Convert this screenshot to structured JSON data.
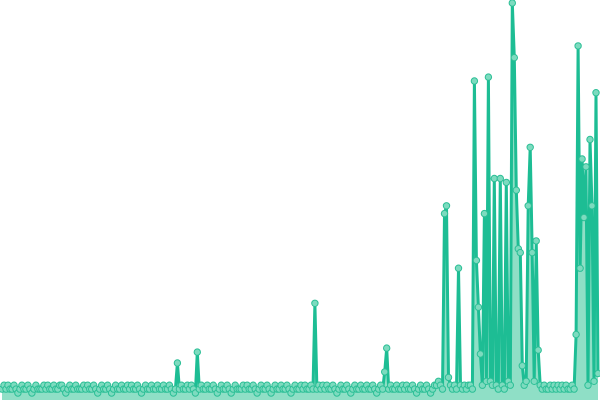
{
  "chart_data": {
    "type": "area",
    "title": "",
    "xlabel": "",
    "ylabel": "",
    "ylim": [
      0,
      100
    ],
    "grid": false,
    "axes_visible": false,
    "markers": true,
    "colors": {
      "line": "#1dbd94",
      "area": "#8fdfc6",
      "marker_fill": "#7ddbbf",
      "marker_stroke": "#2cbf96"
    },
    "series": [
      {
        "values": [
          1,
          2,
          1,
          2,
          1,
          1,
          2,
          1,
          0,
          1,
          2,
          1,
          1,
          2,
          1,
          0,
          1,
          2,
          1,
          1,
          1,
          2,
          1,
          2,
          1,
          1,
          2,
          1,
          1,
          2,
          2,
          1,
          0,
          1,
          2,
          1,
          1,
          2,
          1,
          1,
          1,
          2,
          1,
          2,
          1,
          1,
          2,
          1,
          0,
          1,
          2,
          1,
          1,
          2,
          1,
          0,
          1,
          2,
          1,
          1,
          2,
          1,
          1,
          2,
          1,
          2,
          1,
          1,
          2,
          1,
          0,
          1,
          2,
          1,
          1,
          2,
          1,
          1,
          2,
          1,
          1,
          2,
          1,
          1,
          2,
          1,
          0,
          1,
          7.7,
          1,
          2,
          1,
          1,
          2,
          1,
          2,
          1,
          0,
          10.5,
          1,
          2,
          1,
          1,
          2,
          1,
          1,
          2,
          1,
          0,
          1,
          2,
          1,
          1,
          2,
          1,
          0,
          1,
          2,
          1,
          1,
          1,
          2,
          1,
          2,
          1,
          1,
          2,
          1,
          0,
          1,
          2,
          1,
          1,
          2,
          1,
          0,
          1,
          2,
          1,
          1,
          2,
          1,
          1,
          2,
          1,
          0,
          1,
          2,
          1,
          1,
          2,
          1,
          2,
          1,
          1,
          2,
          1,
          23,
          1,
          2,
          1,
          2,
          1,
          2,
          1,
          1,
          2,
          1,
          0,
          1,
          2,
          1,
          1,
          2,
          1,
          0,
          1,
          2,
          1,
          1,
          2,
          1,
          1,
          2,
          1,
          1,
          2,
          1,
          0,
          1,
          2,
          1,
          5.4,
          11.5,
          1,
          2,
          1,
          1,
          2,
          1,
          1,
          2,
          1,
          2,
          1,
          1,
          2,
          1,
          0,
          1,
          2,
          1,
          1,
          2,
          1,
          0,
          1,
          2,
          2,
          3,
          2,
          1,
          46,
          48,
          4,
          2,
          1,
          2,
          1,
          32,
          2,
          1,
          2,
          1,
          2,
          2,
          1,
          80,
          34,
          22,
          10,
          2,
          46,
          3,
          81,
          3,
          2,
          55,
          2,
          1,
          55,
          2,
          1,
          54,
          3,
          2,
          100,
          86,
          52,
          37,
          36,
          7,
          2,
          3,
          48,
          63,
          36,
          3,
          39,
          11,
          2,
          1,
          2,
          1,
          1,
          2,
          1,
          2,
          1,
          2,
          1,
          2,
          1,
          2,
          1,
          1,
          2,
          1,
          15,
          89,
          32,
          60,
          45,
          58,
          2,
          65,
          48,
          3,
          77,
          5
        ]
      }
    ]
  }
}
